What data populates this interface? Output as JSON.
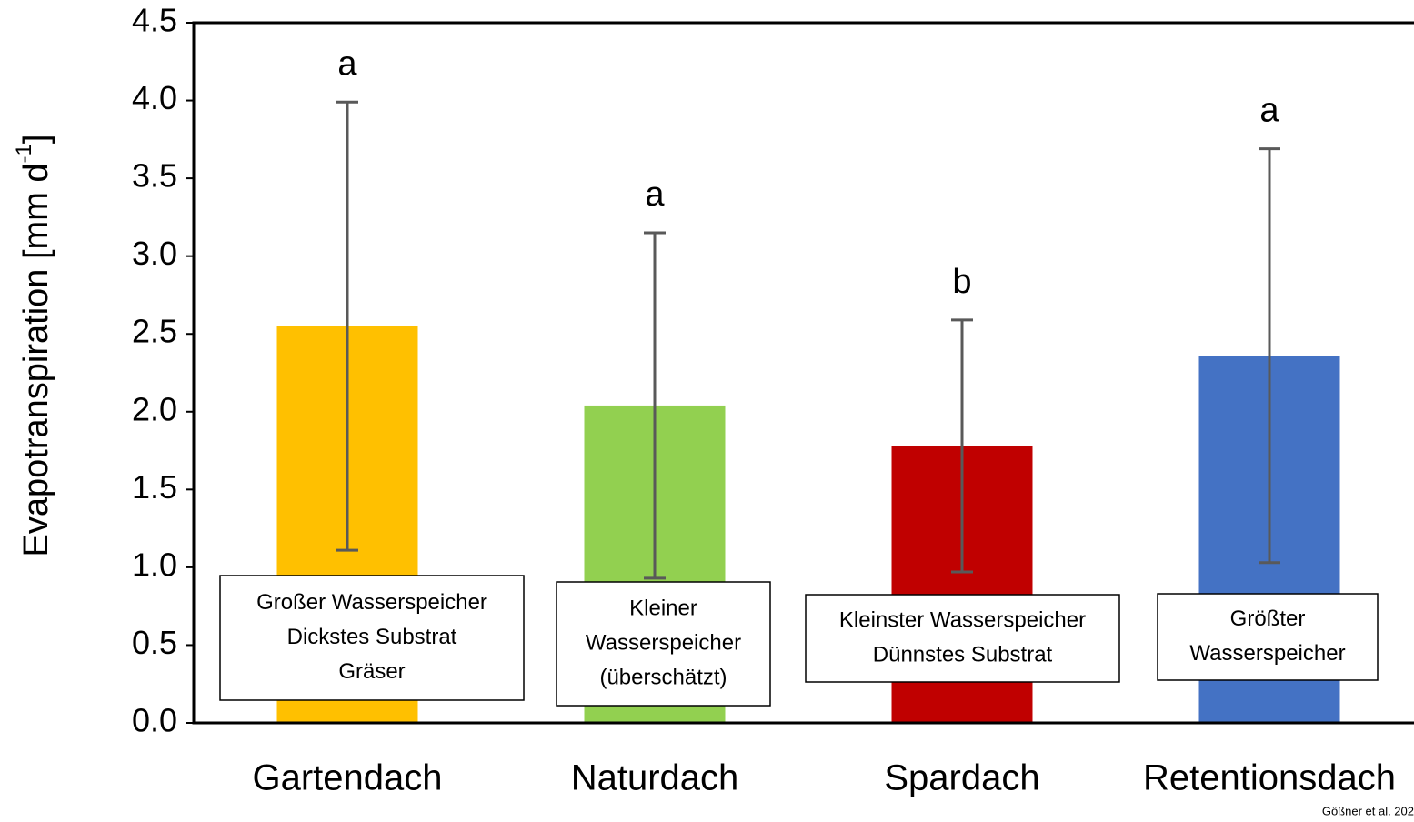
{
  "chart_data": {
    "type": "bar",
    "y_label": "Evapotranspiration [mm d",
    "y_label_sup": "-1",
    "y_label_end": "]",
    "categories": [
      "Gartendach",
      "Naturdach",
      "Spardach",
      "Retentionsdach"
    ],
    "values": [
      2.55,
      2.04,
      1.78,
      2.36
    ],
    "errors": [
      1.44,
      1.11,
      0.81,
      1.33
    ],
    "colors": [
      "#ffc000",
      "#92d050",
      "#c00000",
      "#4472c4"
    ],
    "error_color": "#595959",
    "significance": [
      "a",
      "a",
      "b",
      "a"
    ],
    "boxes": [
      [
        "Großer Wasserspeicher",
        "Dickstes Substrat",
        "Gräser"
      ],
      [
        "Kleiner",
        "Wasserspeicher",
        "(überschätzt)"
      ],
      [
        "Kleinster Wasserspeicher",
        "Dünnstes Substrat"
      ],
      [
        "Größter",
        "Wasserspeicher"
      ]
    ],
    "source": "Gößner et al. 202",
    "ylim": [
      0,
      4.5
    ],
    "yticks": [
      {
        "value": 0,
        "label": "0.0"
      },
      0.5,
      {
        "value": 1,
        "label": "1.0"
      },
      1.5,
      {
        "value": 2,
        "label": "2.0"
      },
      2.5,
      {
        "value": 3,
        "label": "3.0"
      },
      3.5,
      {
        "value": 4,
        "label": "4.0"
      },
      4.5
    ],
    "grid": false
  }
}
